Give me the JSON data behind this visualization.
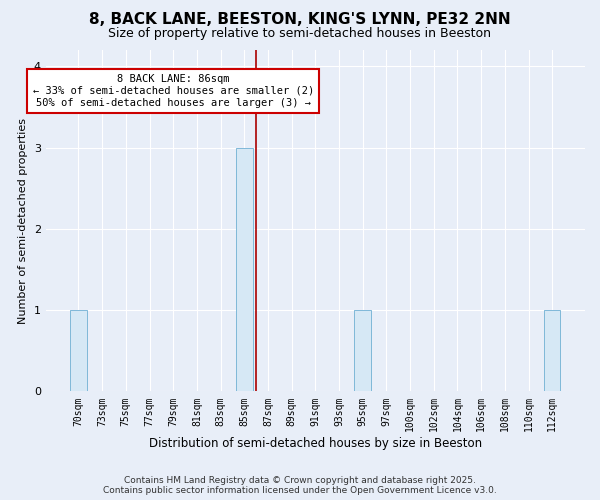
{
  "title": "8, BACK LANE, BEESTON, KING'S LYNN, PE32 2NN",
  "subtitle": "Size of property relative to semi-detached houses in Beeston",
  "xlabel": "Distribution of semi-detached houses by size in Beeston",
  "ylabel": "Number of semi-detached properties",
  "bin_labels": [
    "70sqm",
    "73sqm",
    "75sqm",
    "77sqm",
    "79sqm",
    "81sqm",
    "83sqm",
    "85sqm",
    "87sqm",
    "89sqm",
    "91sqm",
    "93sqm",
    "95sqm",
    "97sqm",
    "100sqm",
    "102sqm",
    "104sqm",
    "106sqm",
    "108sqm",
    "110sqm",
    "112sqm"
  ],
  "counts": [
    1,
    0,
    0,
    0,
    0,
    0,
    0,
    3,
    0,
    0,
    0,
    0,
    1,
    0,
    0,
    0,
    0,
    0,
    0,
    0,
    1
  ],
  "bar_color": "#d6e8f5",
  "bar_edge_color": "#7fb8d8",
  "subject_line_idx": 7.5,
  "subject_line_color": "#aa0000",
  "annotation_line1": "8 BACK LANE: 86sqm",
  "annotation_line2": "← 33% of semi-detached houses are smaller (2)",
  "annotation_line3": "50% of semi-detached houses are larger (3) →",
  "annotation_box_color": "#ffffff",
  "annotation_box_edge_color": "#cc0000",
  "ylim": [
    0,
    4.2
  ],
  "yticks": [
    0,
    1,
    2,
    3,
    4
  ],
  "background_color": "#e8eef8",
  "plot_bg_color": "#e8eef8",
  "footer_text": "Contains HM Land Registry data © Crown copyright and database right 2025.\nContains public sector information licensed under the Open Government Licence v3.0.",
  "title_fontsize": 11,
  "subtitle_fontsize": 9,
  "xlabel_fontsize": 8.5,
  "ylabel_fontsize": 8,
  "tick_fontsize": 7,
  "annotation_fontsize": 7.5,
  "footer_fontsize": 6.5
}
